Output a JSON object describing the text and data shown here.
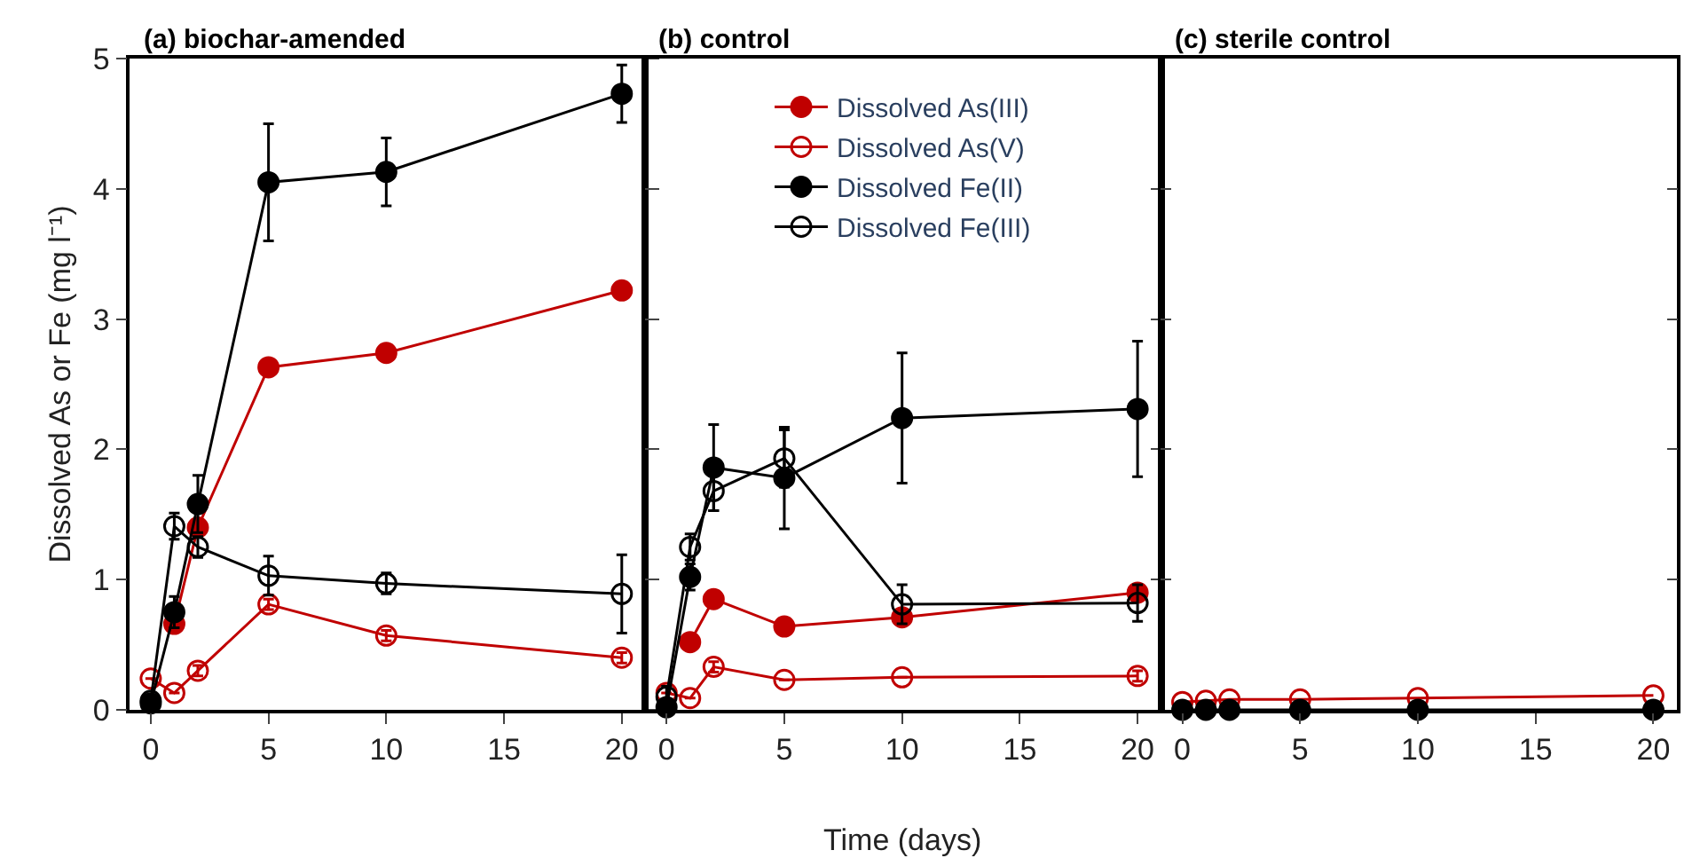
{
  "chart_data": [
    {
      "type": "line",
      "title": "(a) biochar-amended",
      "ylabel": "Dissolved As or Fe (mg l⁻¹)",
      "x": [
        0,
        1,
        2,
        5,
        10,
        20
      ],
      "xlim": [
        -0.9,
        21
      ],
      "xticks": [
        0,
        5,
        10,
        15,
        20
      ],
      "ylim": [
        0,
        5
      ],
      "yticks": [
        0,
        1,
        2,
        3,
        4,
        5
      ],
      "grid": false,
      "legend": false,
      "series": [
        {
          "color": "#c00000",
          "marker": "circle",
          "values": [
            null,
            0.66,
            1.4,
            2.63,
            2.74,
            3.22
          ]
        },
        {
          "color": "#c00000",
          "marker": "circle-open",
          "values": [
            0.24,
            0.13,
            0.3,
            0.81,
            0.57,
            0.4
          ],
          "errors": [
            null,
            null,
            0.04,
            0.04,
            0.04,
            0.04
          ]
        },
        {
          "color": "#000000",
          "marker": "circle",
          "values": [
            0.05,
            0.75,
            1.58,
            4.05,
            4.13,
            4.73
          ],
          "errors": [
            null,
            0.12,
            0.22,
            0.45,
            0.26,
            0.22
          ]
        },
        {
          "color": "#000000",
          "marker": "circle-open",
          "values": [
            0.07,
            1.41,
            1.25,
            1.03,
            0.97,
            0.89
          ],
          "errors": [
            null,
            0.1,
            0.08,
            0.15,
            0.08,
            0.3
          ]
        }
      ]
    },
    {
      "type": "line",
      "title": "(b) control",
      "xlabel": "Time (days)",
      "x": [
        0,
        1,
        2,
        5,
        10,
        20
      ],
      "xlim": [
        -0.9,
        21
      ],
      "xticks": [
        0,
        5,
        10,
        15,
        20
      ],
      "ylim": [
        0,
        5
      ],
      "yticks": [
        0,
        1,
        2,
        3,
        4,
        5
      ],
      "tick_labels": "x",
      "grid": false,
      "legend": "top",
      "series": [
        {
          "name": "Dissolved As(III)",
          "color": "#c00000",
          "marker": "circle",
          "values": [
            null,
            0.52,
            0.85,
            0.64,
            0.71,
            0.9
          ]
        },
        {
          "name": "Dissolved As(V)",
          "color": "#c00000",
          "marker": "circle-open",
          "values": [
            0.13,
            0.09,
            0.33,
            0.23,
            0.25,
            0.26
          ],
          "errors": [
            null,
            null,
            0.04,
            null,
            null,
            0.04
          ]
        },
        {
          "name": "Dissolved Fe(II)",
          "color": "#000000",
          "marker": "circle",
          "values": [
            0.02,
            1.02,
            1.86,
            1.78,
            2.24,
            2.31
          ],
          "errors": [
            null,
            0.1,
            0.33,
            0.39,
            0.5,
            0.52
          ]
        },
        {
          "name": "Dissolved Fe(III)",
          "color": "#000000",
          "marker": "circle-open",
          "values": [
            0.1,
            1.25,
            1.68,
            1.93,
            0.81,
            0.82
          ],
          "errors": [
            0.08,
            0.1,
            0.15,
            0.22,
            0.15,
            0.14
          ]
        }
      ]
    },
    {
      "type": "line",
      "title": "(c) sterile control",
      "x": [
        0,
        1,
        2,
        5,
        10,
        20
      ],
      "xlim": [
        -0.9,
        21
      ],
      "xticks": [
        0,
        5,
        10,
        15,
        20
      ],
      "ylim": [
        0,
        5
      ],
      "yticks": [
        0,
        1,
        2,
        3,
        4,
        5
      ],
      "tick_labels": "x",
      "grid": false,
      "legend": false,
      "series": [
        {
          "color": "#c00000",
          "marker": "circle-open",
          "values": [
            0.06,
            0.07,
            0.08,
            0.08,
            0.09,
            0.11
          ]
        },
        {
          "color": "#000000",
          "marker": "circle",
          "values": [
            0,
            0,
            0,
            0,
            0,
            0
          ]
        }
      ]
    }
  ]
}
